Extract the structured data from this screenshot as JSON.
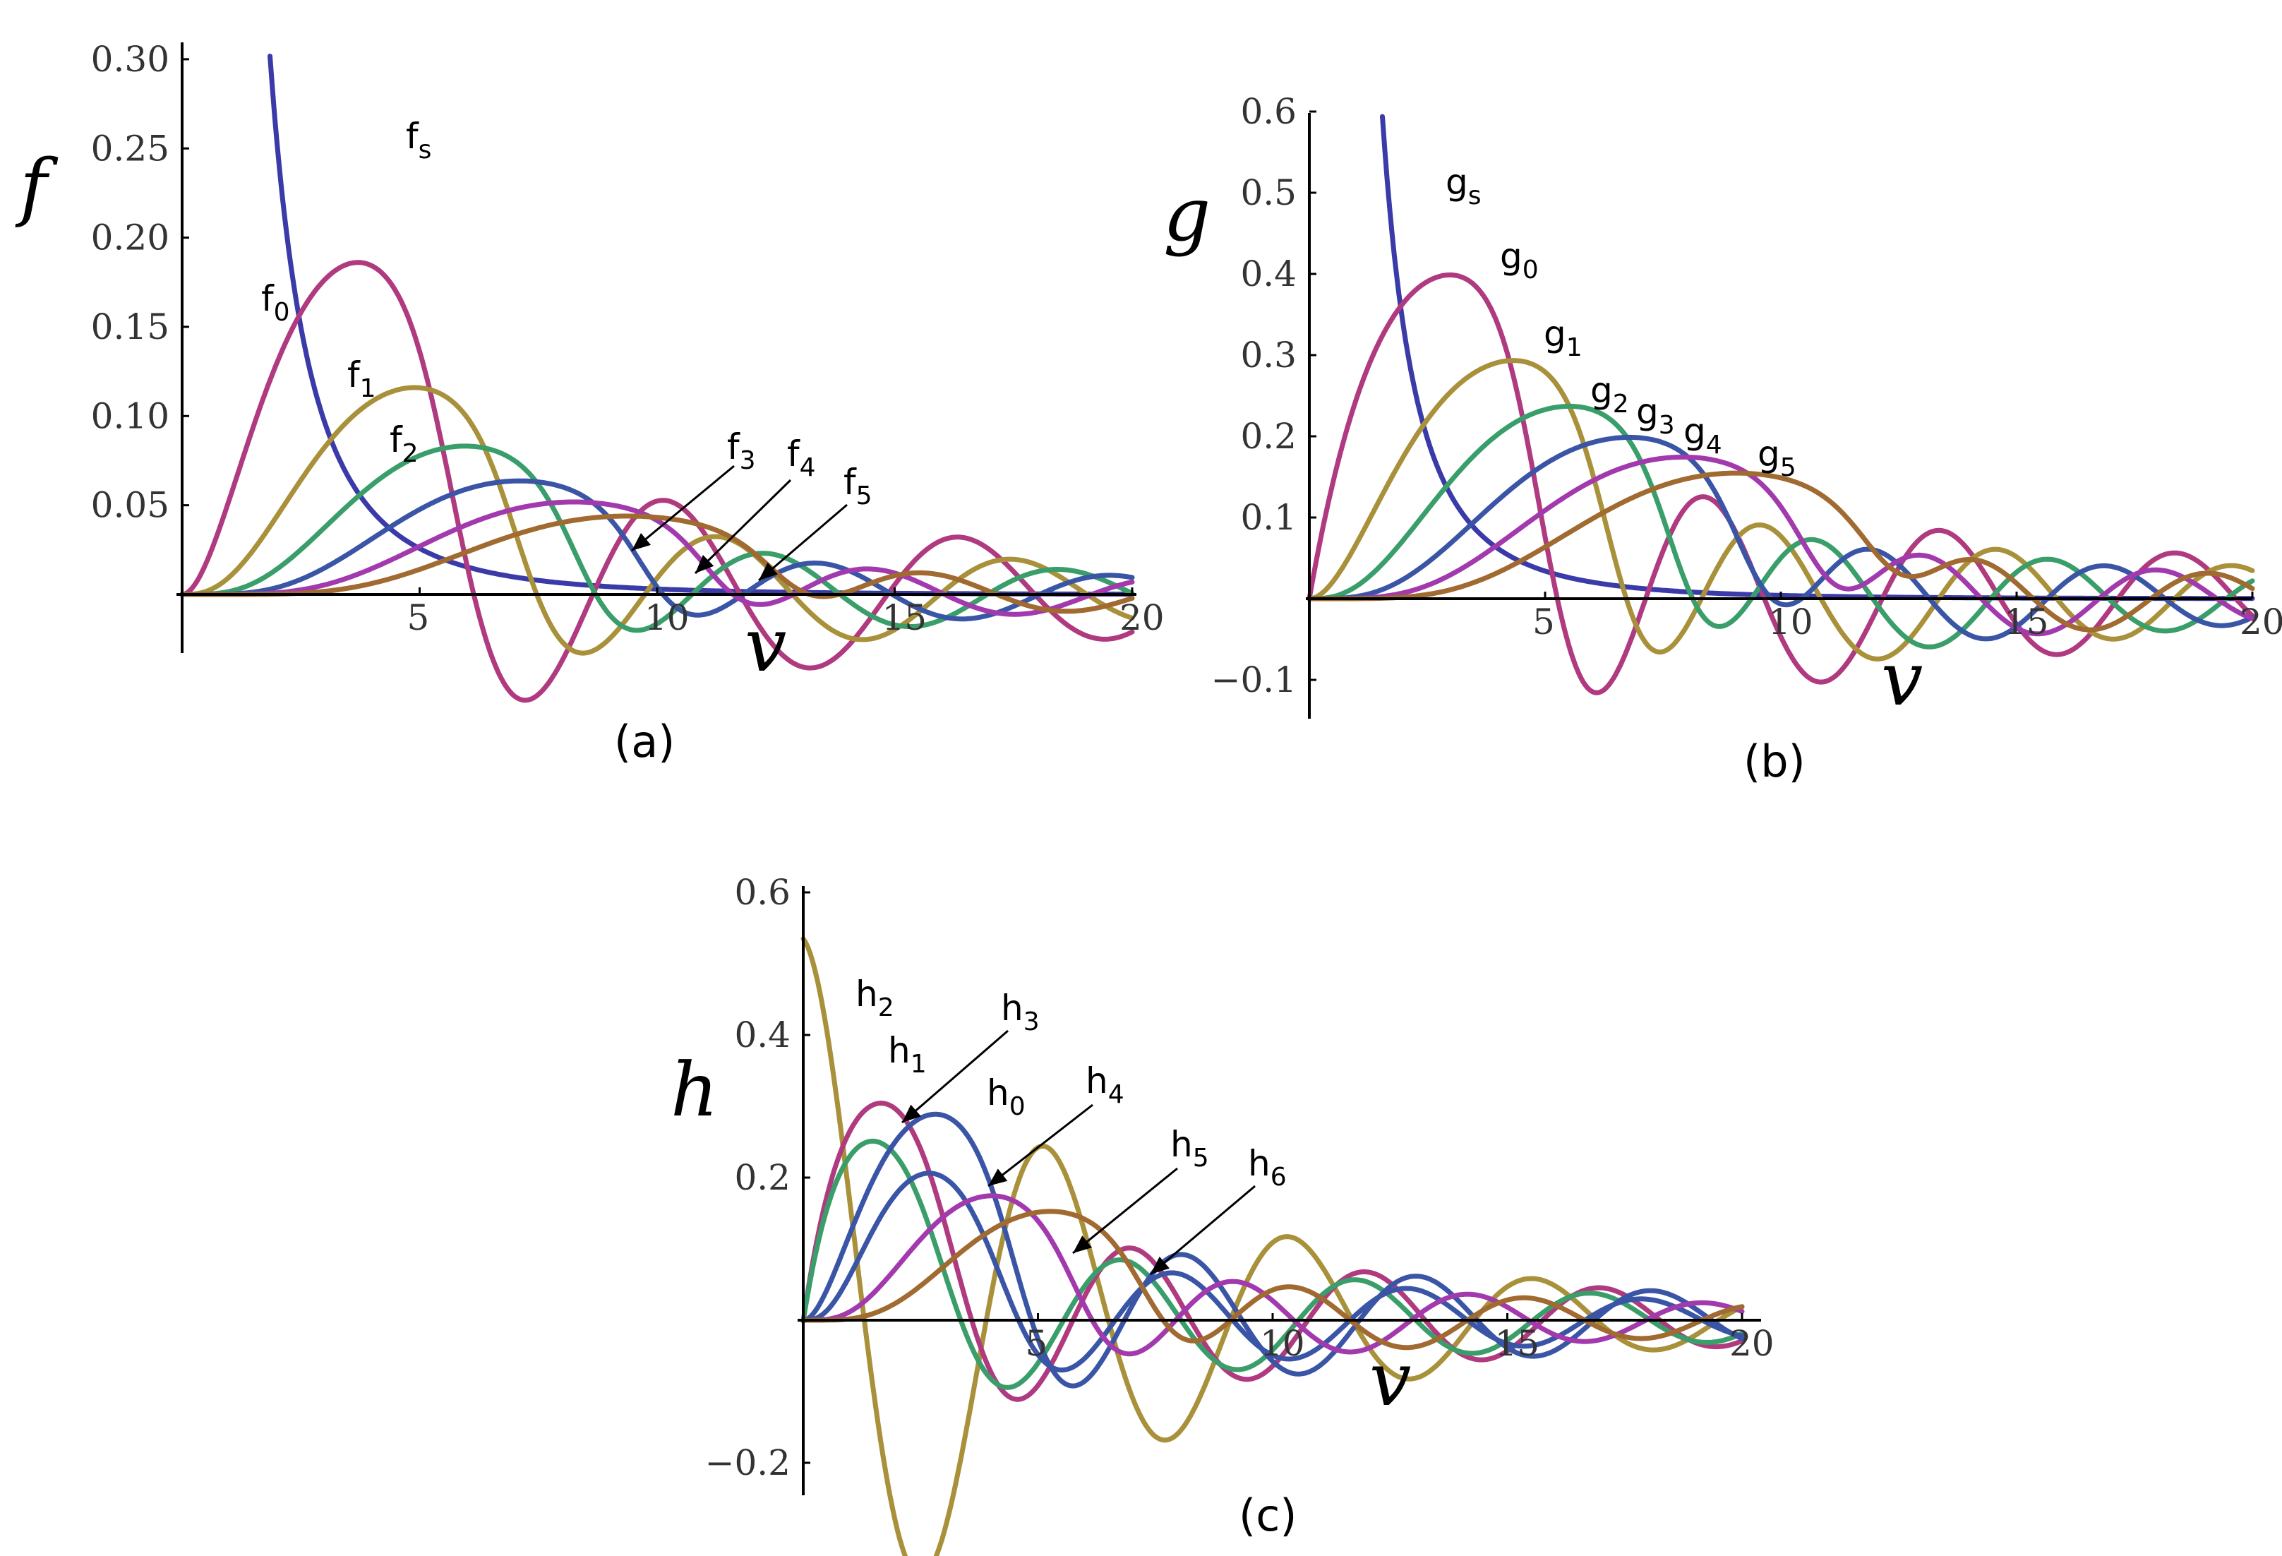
{
  "colors": {
    "mauve": "#B03A80",
    "olive": "#A8913A",
    "green": "#3A9E6A",
    "blue": "#3A55A6",
    "purple": "#A23AAE",
    "brown": "#A06A30",
    "navy": "#3A3AA8"
  },
  "chart_data": [
    {
      "panel": "a",
      "type": "line",
      "caption": "(a)",
      "ylabel": "f",
      "xlabel": "v",
      "xlim": [
        0,
        20.5
      ],
      "ylim": [
        -0.03,
        0.3
      ],
      "xticks": [
        "5",
        "10",
        "15",
        "20"
      ],
      "yticks": [
        "0.05",
        "0.10",
        "0.15",
        "0.20",
        "0.25",
        "0.30"
      ],
      "series": [
        {
          "name": "fs",
          "label": "f",
          "sub": "s",
          "color": "navy",
          "kind": "singular",
          "amp": 0.0,
          "peak": 4.4
        },
        {
          "name": "f0",
          "label": "f",
          "sub": "0",
          "color": "mauve",
          "kind": "osc",
          "order": 2,
          "peak": 4.0,
          "amp": 0.192
        },
        {
          "name": "f1",
          "label": "f",
          "sub": "1",
          "color": "olive",
          "kind": "osc",
          "order": 3,
          "peak": 5.1,
          "amp": 0.118
        },
        {
          "name": "f2",
          "label": "f",
          "sub": "2",
          "color": "green",
          "kind": "osc",
          "order": 4,
          "peak": 6.1,
          "amp": 0.084
        },
        {
          "name": "f3",
          "label": "f",
          "sub": "3",
          "color": "blue",
          "kind": "osc",
          "order": 5,
          "peak": 7.2,
          "amp": 0.064
        },
        {
          "name": "f4",
          "label": "f",
          "sub": "4",
          "color": "purple",
          "kind": "osc",
          "order": 6,
          "peak": 8.3,
          "amp": 0.052
        },
        {
          "name": "f5",
          "label": "f",
          "sub": "5",
          "color": "brown",
          "kind": "osc",
          "order": 7,
          "peak": 9.4,
          "amp": 0.044
        }
      ]
    },
    {
      "panel": "b",
      "type": "line",
      "caption": "(b)",
      "ylabel": "g",
      "xlabel": "v",
      "xlim": [
        0,
        20
      ],
      "ylim": [
        -0.15,
        0.62
      ],
      "xticks": [
        "5",
        "10",
        "15",
        "20"
      ],
      "yticks": [
        "−0.1",
        "0.1",
        "0.2",
        "0.3",
        "0.4",
        "0.5",
        "0.6"
      ],
      "series": [
        {
          "name": "gs",
          "label": "g",
          "sub": "s",
          "color": "navy",
          "kind": "singular",
          "amp": 0.0,
          "peak": 2.4
        },
        {
          "name": "g0",
          "label": "g",
          "sub": "0",
          "color": "mauve",
          "kind": "osc",
          "order": 1,
          "peak": 3.4,
          "amp": 0.415
        },
        {
          "name": "g1",
          "label": "g",
          "sub": "1",
          "color": "olive",
          "kind": "osc",
          "order": 2,
          "peak": 4.6,
          "amp": 0.3
        },
        {
          "name": "g2",
          "label": "g",
          "sub": "2",
          "color": "green",
          "kind": "osc",
          "order": 3,
          "peak": 5.7,
          "amp": 0.24
        },
        {
          "name": "g3",
          "label": "g",
          "sub": "3",
          "color": "blue",
          "kind": "osc",
          "order": 4,
          "peak": 6.9,
          "amp": 0.2
        },
        {
          "name": "g4",
          "label": "g",
          "sub": "4",
          "color": "purple",
          "kind": "osc",
          "order": 5,
          "peak": 8.0,
          "amp": 0.175
        },
        {
          "name": "g5",
          "label": "g",
          "sub": "5",
          "color": "brown",
          "kind": "osc",
          "order": 6,
          "peak": 9.1,
          "amp": 0.155
        }
      ]
    },
    {
      "panel": "c",
      "type": "line",
      "caption": "(c)",
      "ylabel": "h",
      "xlabel": "v",
      "xlim": [
        0,
        20.5
      ],
      "ylim": [
        -0.25,
        0.62
      ],
      "xticks": [
        "5",
        "10",
        "15",
        "20"
      ],
      "yticks": [
        "−0.2",
        "0.2",
        "0.4",
        "0.6"
      ],
      "series": [
        {
          "name": "h2",
          "label": "h",
          "sub": "2",
          "color": "olive",
          "kind": "cos",
          "amp": 0.535,
          "decay": 0.55,
          "period": 5.2
        },
        {
          "name": "h1",
          "label": "h",
          "sub": "1",
          "color": "mauve",
          "kind": "osc",
          "order": 1,
          "peak": 2.0,
          "amp": 0.335
        },
        {
          "name": "h3",
          "label": "h",
          "sub": "3",
          "color": "green",
          "kind": "osc",
          "order": 1,
          "peak": 1.8,
          "amp": 0.28
        },
        {
          "name": "h0",
          "label": "h",
          "sub": "0",
          "color": "blue",
          "kind": "osc",
          "order": 2,
          "peak": 3.1,
          "amp": 0.305
        },
        {
          "name": "h4",
          "label": "h",
          "sub": "4",
          "color": "blue",
          "kind": "osc",
          "order": 3,
          "peak": 2.9,
          "amp": 0.22
        },
        {
          "name": "h5",
          "label": "h",
          "sub": "5",
          "color": "purple",
          "kind": "osc",
          "order": 4,
          "peak": 4.2,
          "amp": 0.18
        },
        {
          "name": "h6",
          "label": "h",
          "sub": "6",
          "color": "brown",
          "kind": "osc",
          "order": 5,
          "peak": 5.4,
          "amp": 0.155
        }
      ]
    }
  ]
}
